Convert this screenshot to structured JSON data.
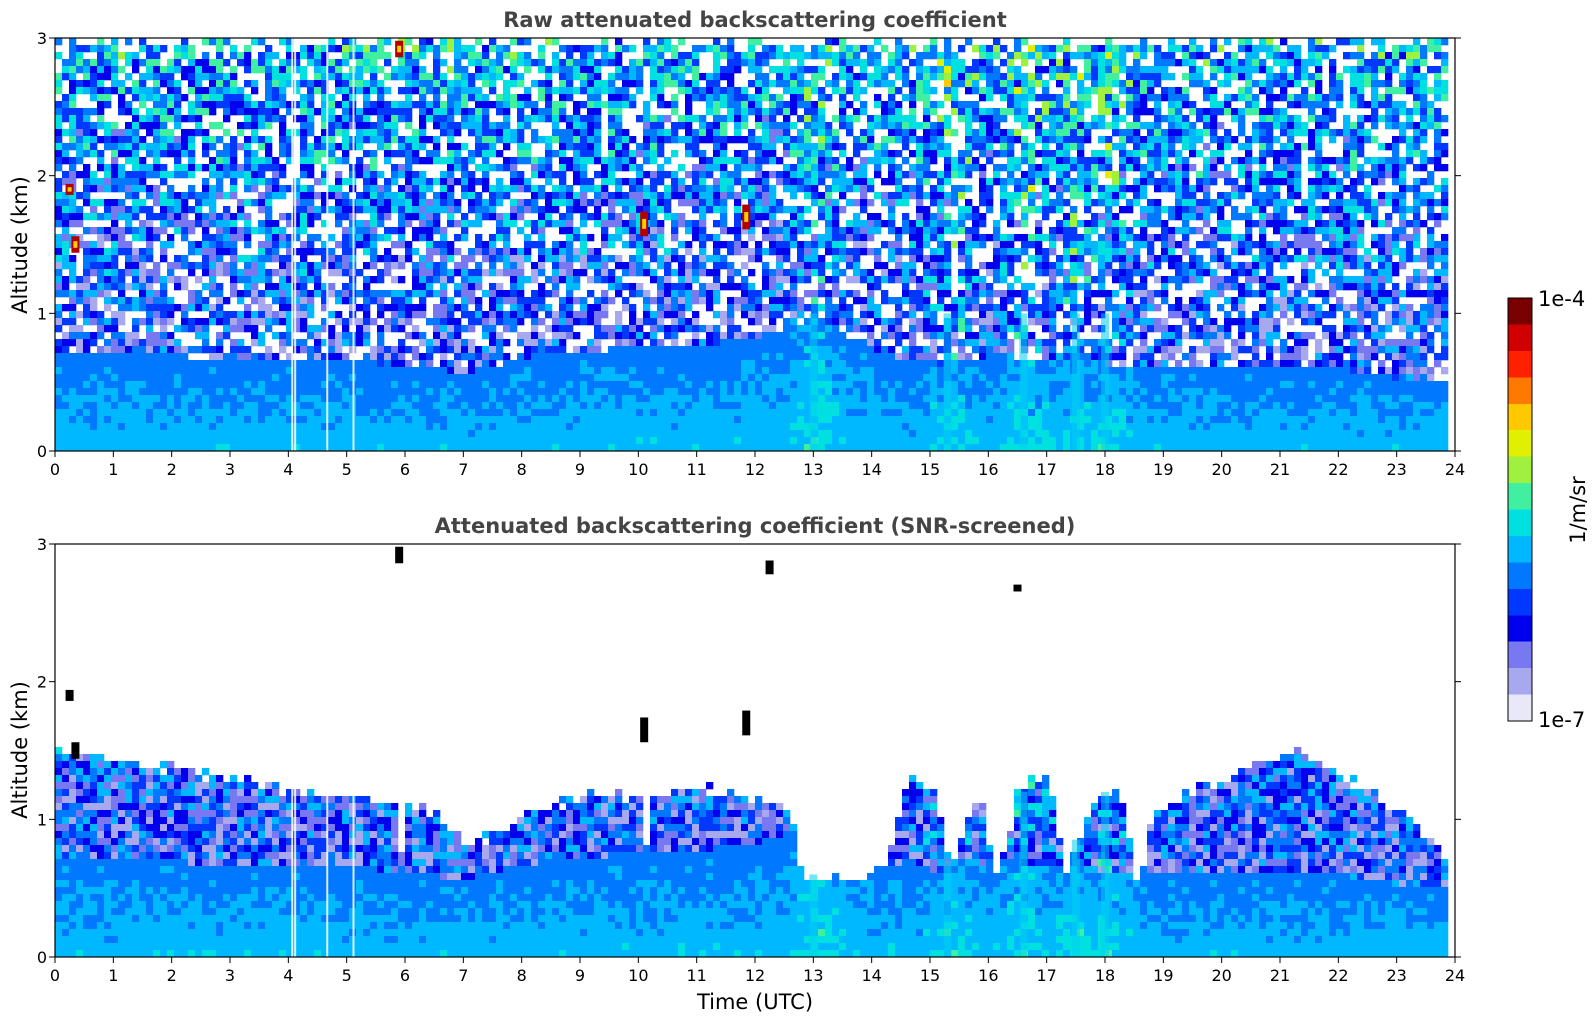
{
  "chart_data": [
    {
      "type": "heatmap",
      "title": "Raw attenuated backscattering coefficient",
      "xlabel": "",
      "ylabel": "Altitude (km)",
      "xlim": [
        0,
        24
      ],
      "ylim": [
        0,
        3
      ],
      "x_ticks": [
        "0",
        "1",
        "2",
        "3",
        "4",
        "5",
        "6",
        "7",
        "8",
        "9",
        "10",
        "11",
        "12",
        "13",
        "14",
        "15",
        "16",
        "17",
        "18",
        "19",
        "20",
        "21",
        "22",
        "23",
        "24"
      ],
      "y_ticks": [
        "0",
        "1",
        "2",
        "3"
      ],
      "data_end_hour": 23.8,
      "boundary_layer_top_km": [
        [
          0,
          0.75
        ],
        [
          1,
          0.75
        ],
        [
          2,
          0.72
        ],
        [
          3,
          0.68
        ],
        [
          4,
          0.68
        ],
        [
          5,
          0.7
        ],
        [
          6,
          0.62
        ],
        [
          7,
          0.6
        ],
        [
          8,
          0.7
        ],
        [
          9,
          0.75
        ],
        [
          10,
          0.78
        ],
        [
          11,
          0.8
        ],
        [
          12,
          0.85
        ],
        [
          13,
          1.0
        ],
        [
          14,
          0.75
        ],
        [
          15,
          0.65
        ],
        [
          16,
          0.72
        ],
        [
          17,
          0.7
        ],
        [
          18,
          0.65
        ],
        [
          19,
          0.65
        ],
        [
          20,
          0.65
        ],
        [
          21,
          0.65
        ],
        [
          22,
          0.62
        ],
        [
          23,
          0.55
        ],
        [
          23.8,
          0.55
        ]
      ],
      "cloud_features": [
        {
          "hour": 0.35,
          "alt_km": 1.5,
          "depth_km": 0.12
        },
        {
          "hour": 0.25,
          "alt_km": 1.9,
          "depth_km": 0.08
        },
        {
          "hour": 5.9,
          "alt_km": 2.92,
          "depth_km": 0.12
        },
        {
          "hour": 10.1,
          "alt_km": 1.65,
          "depth_km": 0.18
        },
        {
          "hour": 11.85,
          "alt_km": 1.7,
          "depth_km": 0.18
        }
      ],
      "aerosol_plumes_hours": [
        13.0,
        15.3,
        16.6,
        17.5,
        18.0
      ],
      "colorbar": {
        "label": "1/m/sr",
        "min_label": "1e-7",
        "max_label": "1e-4",
        "scale": "log"
      }
    },
    {
      "type": "heatmap",
      "title": "Attenuated backscattering coefficient (SNR-screened)",
      "xlabel": "Time (UTC)",
      "ylabel": "Altitude (km)",
      "xlim": [
        0,
        24
      ],
      "ylim": [
        0,
        3
      ],
      "x_ticks": [
        "0",
        "1",
        "2",
        "3",
        "4",
        "5",
        "6",
        "7",
        "8",
        "9",
        "10",
        "11",
        "12",
        "13",
        "14",
        "15",
        "16",
        "17",
        "18",
        "19",
        "20",
        "21",
        "22",
        "23",
        "24"
      ],
      "y_ticks": [
        "0",
        "1",
        "2",
        "3"
      ],
      "data_end_hour": 23.8,
      "screened_top_km": [
        [
          0,
          1.5
        ],
        [
          0.5,
          1.5
        ],
        [
          1,
          1.45
        ],
        [
          2,
          1.4
        ],
        [
          3,
          1.3
        ],
        [
          4,
          1.25
        ],
        [
          5,
          1.2
        ],
        [
          5.8,
          1.15
        ],
        [
          5.9,
          0.72
        ],
        [
          6.0,
          1.15
        ],
        [
          6.5,
          1.05
        ],
        [
          7,
          0.82
        ],
        [
          8,
          1.05
        ],
        [
          9,
          1.2
        ],
        [
          10,
          1.2
        ],
        [
          10.1,
          0.78
        ],
        [
          10.2,
          1.2
        ],
        [
          11,
          1.25
        ],
        [
          11.8,
          1.2
        ],
        [
          12.5,
          1.1
        ],
        [
          12.8,
          0.6
        ],
        [
          13.2,
          0.6
        ],
        [
          13.7,
          0.55
        ],
        [
          14.2,
          0.75
        ],
        [
          14.6,
          1.35
        ],
        [
          15.0,
          1.2
        ],
        [
          15.3,
          0.7
        ],
        [
          15.8,
          1.2
        ],
        [
          16.1,
          0.58
        ],
        [
          16.5,
          1.3
        ],
        [
          17.0,
          1.3
        ],
        [
          17.3,
          0.62
        ],
        [
          17.8,
          1.2
        ],
        [
          18.2,
          1.2
        ],
        [
          18.5,
          0.57
        ],
        [
          18.8,
          1.1
        ],
        [
          19.5,
          1.25
        ],
        [
          20.5,
          1.4
        ],
        [
          21.2,
          1.55
        ],
        [
          22,
          1.35
        ],
        [
          23,
          1.1
        ],
        [
          23.8,
          0.75
        ]
      ],
      "cloud_features": [
        {
          "hour": 0.35,
          "alt_km": 1.5,
          "depth_km": 0.12
        },
        {
          "hour": 0.25,
          "alt_km": 1.9,
          "depth_km": 0.08
        },
        {
          "hour": 5.9,
          "alt_km": 2.92,
          "depth_km": 0.12
        },
        {
          "hour": 10.1,
          "alt_km": 1.65,
          "depth_km": 0.18
        },
        {
          "hour": 11.85,
          "alt_km": 1.7,
          "depth_km": 0.18
        },
        {
          "hour": 12.25,
          "alt_km": 2.83,
          "depth_km": 0.1
        },
        {
          "hour": 16.5,
          "alt_km": 2.68,
          "depth_km": 0.05
        }
      ],
      "colorbar": {
        "label": "1/m/sr",
        "min_label": "1e-7",
        "max_label": "1e-4",
        "scale": "log"
      }
    }
  ],
  "colors": {
    "title_gray": "#444444",
    "cmap": [
      "#e8e8f8",
      "#a8a8ee",
      "#7878f0",
      "#0000ee",
      "#0038ff",
      "#0078ff",
      "#00b8ff",
      "#00e0e0",
      "#40f0a0",
      "#a0f040",
      "#e0f000",
      "#ffc800",
      "#ff7800",
      "#ff2000",
      "#d00000",
      "#780000"
    ]
  }
}
